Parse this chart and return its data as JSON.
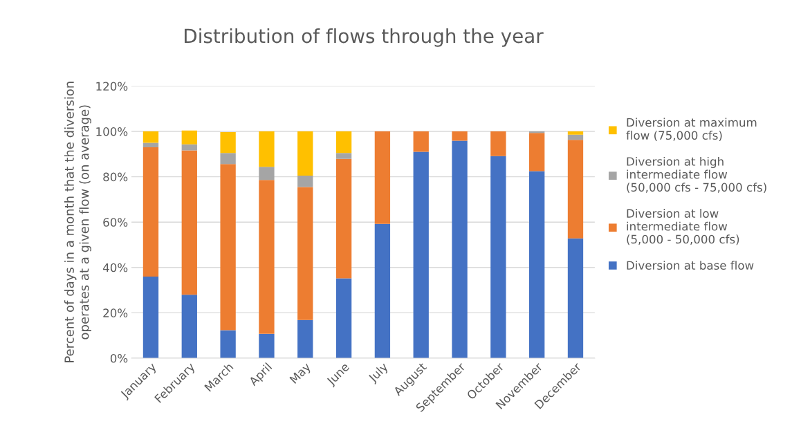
{
  "chart_data": {
    "type": "bar",
    "stacked": true,
    "title": "Distribution of flows through the year",
    "ylabel": "Percent of days in a month that the diversion\noperates at a given flow (on average)",
    "categories": [
      "January",
      "February",
      "March",
      "April",
      "May",
      "June",
      "July",
      "August",
      "September",
      "October",
      "November",
      "December"
    ],
    "series": [
      {
        "name": "Diversion at base flow",
        "color": "#4472c4",
        "values": [
          36,
          28,
          12.3,
          10.7,
          16.8,
          35.2,
          59.2,
          91,
          95.9,
          89.1,
          82.5,
          52.8
        ]
      },
      {
        "name": "Diversion at low\nintermediate flow\n(5,000 - 50,000 cfs)",
        "color": "#ed7d31",
        "values": [
          57,
          63.6,
          73.3,
          67.9,
          58.7,
          52.7,
          40.8,
          9,
          4.1,
          10.9,
          16.8,
          43.5
        ]
      },
      {
        "name": "Diversion at high\nintermediate flow\n(50,000 cfs - 75,000 cfs)",
        "color": "#a5a5a5",
        "values": [
          2,
          2.7,
          4.9,
          5.8,
          5,
          2.6,
          0,
          0,
          0,
          0,
          0.7,
          2.3
        ]
      },
      {
        "name": "Diversion at maximum\nflow (75,000 cfs)",
        "color": "#ffc000",
        "values": [
          5,
          6.1,
          9.2,
          15.6,
          19.5,
          9.5,
          0,
          0,
          0,
          0,
          0,
          1.4
        ]
      }
    ],
    "ylim": [
      0,
      120
    ],
    "yticks": [
      {
        "value": 0,
        "label": "0%"
      },
      {
        "value": 20,
        "label": "20%"
      },
      {
        "value": 40,
        "label": "40%"
      },
      {
        "value": 60,
        "label": "60%"
      },
      {
        "value": 80,
        "label": "80%"
      },
      {
        "value": 100,
        "label": "100%"
      },
      {
        "value": 120,
        "label": "120%"
      }
    ],
    "grid": "y",
    "legend": "right"
  }
}
